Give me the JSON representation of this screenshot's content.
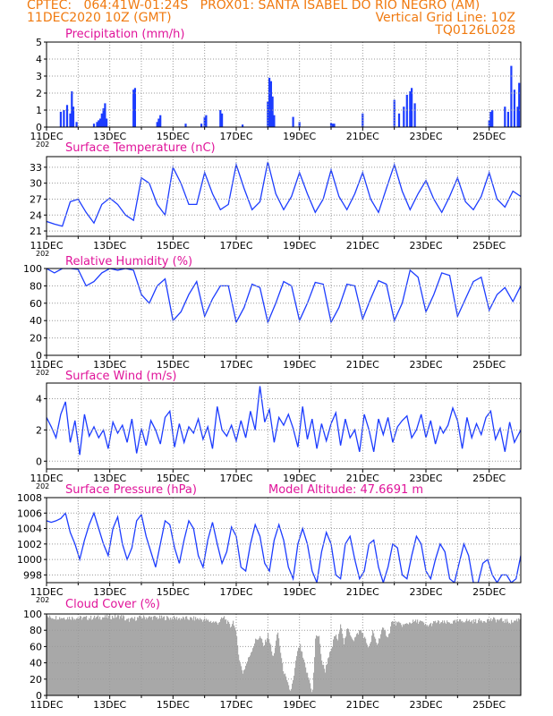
{
  "header": {
    "line1_left": "CPTEC:   064:41W-01:24S   PROX01: SANTA ISABEL DO RIO NEGRO (AM)",
    "line2_left": "11DEC2020 10Z (GMT)",
    "line2_right": "Vertical Grid Line: 10Z",
    "line3_right": "TQ0126L028"
  },
  "colors": {
    "header": "#f07a10",
    "title": "#e0149a",
    "series": "#1c3cff",
    "grid": "#9a9a9a",
    "cloud": "#a8a8a8",
    "axis": "#000000"
  },
  "x_axis": {
    "ticks": [
      "11DEC",
      "13DEC",
      "15DEC",
      "17DEC",
      "19DEC",
      "21DEC",
      "23DEC",
      "25DEC"
    ],
    "tick_days": [
      0,
      2,
      4,
      6,
      8,
      10,
      12,
      14
    ],
    "sub_label": "202",
    "range_days": [
      0,
      15
    ]
  },
  "chart_data": [
    {
      "type": "bar",
      "title": "Precipitation (mm/h)",
      "ylim": [
        0,
        5
      ],
      "yticks": [
        "0",
        "1",
        "2",
        "3",
        "4",
        "5"
      ],
      "x_unit": "days since 11DEC2020 10Z",
      "bars": [
        [
          0.45,
          0.9
        ],
        [
          0.55,
          1.0
        ],
        [
          0.65,
          1.3
        ],
        [
          0.75,
          0.8
        ],
        [
          0.8,
          2.1
        ],
        [
          0.85,
          1.2
        ],
        [
          0.95,
          0.3
        ],
        [
          1.5,
          0.2
        ],
        [
          1.6,
          0.3
        ],
        [
          1.65,
          0.4
        ],
        [
          1.7,
          0.5
        ],
        [
          1.75,
          0.8
        ],
        [
          1.8,
          1.1
        ],
        [
          1.85,
          1.4
        ],
        [
          1.9,
          0.5
        ],
        [
          2.75,
          2.2
        ],
        [
          2.8,
          2.3
        ],
        [
          3.5,
          0.3
        ],
        [
          3.55,
          0.5
        ],
        [
          3.6,
          0.7
        ],
        [
          4.4,
          0.2
        ],
        [
          4.9,
          0.2
        ],
        [
          5.0,
          0.6
        ],
        [
          5.05,
          0.7
        ],
        [
          5.5,
          1.0
        ],
        [
          5.55,
          0.8
        ],
        [
          6.2,
          0.15
        ],
        [
          7.0,
          1.5
        ],
        [
          7.05,
          2.9
        ],
        [
          7.1,
          2.7
        ],
        [
          7.15,
          1.8
        ],
        [
          7.2,
          0.7
        ],
        [
          7.8,
          0.6
        ],
        [
          8.0,
          0.3
        ],
        [
          9.0,
          0.25
        ],
        [
          9.05,
          0.2
        ],
        [
          9.1,
          0.2
        ],
        [
          10.0,
          0.8
        ],
        [
          11.0,
          1.6
        ],
        [
          11.15,
          0.8
        ],
        [
          11.3,
          1.2
        ],
        [
          11.4,
          1.9
        ],
        [
          11.5,
          2.1
        ],
        [
          11.55,
          2.3
        ],
        [
          11.65,
          1.4
        ],
        [
          14.0,
          0.4
        ],
        [
          14.05,
          0.9
        ],
        [
          14.1,
          1.0
        ],
        [
          14.5,
          1.2
        ],
        [
          14.6,
          0.9
        ],
        [
          14.7,
          3.6
        ],
        [
          14.8,
          2.2
        ],
        [
          14.9,
          1.2
        ],
        [
          14.95,
          2.6
        ]
      ]
    },
    {
      "type": "line",
      "title": "Surface Temperature (nC)",
      "ylim": [
        20,
        35
      ],
      "yticks": [
        "21",
        "24",
        "27",
        "30",
        "33"
      ],
      "ytick_values": [
        21,
        24,
        27,
        30,
        33
      ],
      "x": [
        0,
        0.25,
        0.5,
        0.75,
        1,
        1.25,
        1.5,
        1.75,
        2,
        2.25,
        2.5,
        2.75,
        3,
        3.25,
        3.5,
        3.75,
        4,
        4.25,
        4.5,
        4.75,
        5,
        5.25,
        5.5,
        5.75,
        6,
        6.25,
        6.5,
        6.75,
        7,
        7.25,
        7.5,
        7.75,
        8,
        8.25,
        8.5,
        8.75,
        9,
        9.25,
        9.5,
        9.75,
        10,
        10.25,
        10.5,
        10.75,
        11,
        11.25,
        11.5,
        11.75,
        12,
        12.25,
        12.5,
        12.75,
        13,
        13.25,
        13.5,
        13.75,
        14,
        14.25,
        14.5,
        14.75,
        15
      ],
      "y": [
        22.8,
        22.3,
        21.9,
        26.5,
        27.0,
        24.5,
        22.5,
        26.0,
        27.2,
        26.0,
        24.0,
        23.0,
        31.0,
        30.0,
        26.0,
        24.0,
        33.0,
        30.0,
        26.0,
        26.0,
        32.0,
        28.0,
        25.0,
        26.0,
        33.5,
        29.0,
        25.0,
        26.5,
        34.0,
        28.0,
        25.0,
        27.5,
        32.0,
        28.0,
        24.5,
        27.0,
        32.5,
        27.5,
        25.0,
        28.0,
        32.0,
        27.0,
        24.5,
        29.0,
        33.5,
        28.5,
        25.0,
        28.0,
        30.5,
        27.0,
        24.5,
        27.5,
        31.0,
        26.5,
        25.0,
        27.5,
        32.0,
        27.0,
        25.5,
        28.5,
        27.5
      ]
    },
    {
      "type": "line",
      "title": "Relative Humidity (%)",
      "ylim": [
        0,
        100
      ],
      "yticks": [
        "0",
        "20",
        "40",
        "60",
        "80",
        "100"
      ],
      "x": [
        0,
        0.25,
        0.5,
        0.75,
        1,
        1.25,
        1.5,
        1.75,
        2,
        2.25,
        2.5,
        2.75,
        3,
        3.25,
        3.5,
        3.75,
        4,
        4.25,
        4.5,
        4.75,
        5,
        5.25,
        5.5,
        5.75,
        6,
        6.25,
        6.5,
        6.75,
        7,
        7.25,
        7.5,
        7.75,
        8,
        8.25,
        8.5,
        8.75,
        9,
        9.25,
        9.5,
        9.75,
        10,
        10.25,
        10.5,
        10.75,
        11,
        11.25,
        11.5,
        11.75,
        12,
        12.25,
        12.5,
        12.75,
        13,
        13.25,
        13.5,
        13.75,
        14,
        14.25,
        14.5,
        14.75,
        15
      ],
      "y": [
        100,
        95,
        100,
        100,
        99,
        80,
        85,
        95,
        100,
        98,
        100,
        98,
        70,
        60,
        80,
        88,
        40,
        50,
        70,
        85,
        45,
        65,
        80,
        80,
        38,
        55,
        82,
        78,
        38,
        60,
        85,
        80,
        40,
        60,
        84,
        82,
        38,
        55,
        82,
        80,
        42,
        65,
        86,
        82,
        40,
        60,
        98,
        90,
        50,
        70,
        95,
        92,
        45,
        65,
        85,
        90,
        52,
        70,
        78,
        62,
        80
      ]
    },
    {
      "type": "line",
      "title": "Surface Wind (m/s)",
      "ylim": [
        -0.5,
        5
      ],
      "yticks": [
        "0",
        "2",
        "4"
      ],
      "ytick_values": [
        0,
        2,
        4
      ],
      "x": [
        0,
        0.15,
        0.3,
        0.45,
        0.6,
        0.75,
        0.9,
        1.05,
        1.2,
        1.35,
        1.5,
        1.65,
        1.8,
        1.95,
        2.1,
        2.25,
        2.4,
        2.55,
        2.7,
        2.85,
        3,
        3.15,
        3.3,
        3.45,
        3.6,
        3.75,
        3.9,
        4.05,
        4.2,
        4.35,
        4.5,
        4.65,
        4.8,
        4.95,
        5.1,
        5.25,
        5.4,
        5.55,
        5.7,
        5.85,
        6,
        6.15,
        6.3,
        6.45,
        6.6,
        6.75,
        6.9,
        7.05,
        7.2,
        7.35,
        7.5,
        7.65,
        7.8,
        7.95,
        8.1,
        8.25,
        8.4,
        8.55,
        8.7,
        8.85,
        9,
        9.15,
        9.3,
        9.45,
        9.6,
        9.75,
        9.9,
        10.05,
        10.2,
        10.35,
        10.5,
        10.65,
        10.8,
        10.95,
        11.1,
        11.25,
        11.4,
        11.55,
        11.7,
        11.85,
        12,
        12.15,
        12.3,
        12.45,
        12.55,
        12.7,
        12.85,
        13,
        13.15,
        13.3,
        13.45,
        13.6,
        13.75,
        13.9,
        14.05,
        14.2,
        14.35,
        14.5,
        14.65,
        14.8,
        15
      ],
      "y": [
        2.8,
        2.2,
        1.5,
        3.0,
        3.8,
        1.2,
        2.6,
        0.4,
        3.0,
        1.6,
        2.2,
        1.5,
        2.0,
        0.8,
        2.5,
        1.8,
        2.3,
        1.2,
        2.7,
        0.5,
        2.1,
        1.0,
        2.6,
        2.0,
        1.1,
        2.8,
        3.2,
        0.9,
        2.4,
        1.2,
        2.2,
        1.8,
        2.7,
        1.4,
        2.2,
        0.8,
        3.5,
        2.0,
        1.6,
        2.3,
        1.3,
        2.6,
        1.5,
        3.2,
        2.0,
        4.8,
        2.5,
        3.3,
        1.2,
        2.8,
        2.3,
        3.0,
        2.1,
        0.9,
        3.5,
        1.4,
        2.7,
        0.8,
        2.4,
        1.3,
        2.4,
        3.1,
        1.0,
        2.7,
        1.5,
        2.0,
        0.6,
        3.0,
        2.0,
        0.6,
        2.7,
        1.7,
        2.8,
        1.2,
        2.2,
        2.6,
        2.9,
        1.5,
        2.0,
        3.0,
        1.5,
        2.6,
        1.1,
        2.2,
        1.8,
        2.3,
        3.4,
        2.6,
        0.8,
        2.8,
        1.5,
        2.4,
        1.7,
        2.8,
        3.2,
        1.4,
        2.1,
        0.6,
        2.5,
        1.2,
        2.0
      ]
    },
    {
      "type": "line",
      "title": "Surface Pressure (hPa)",
      "ylim": [
        997,
        1008
      ],
      "yticks": [
        "998",
        "1000",
        "1002",
        "1004",
        "1006",
        "1008"
      ],
      "ytick_values": [
        998,
        1000,
        1002,
        1004,
        1006,
        1008
      ],
      "x": [
        0,
        0.15,
        0.3,
        0.45,
        0.6,
        0.75,
        0.9,
        1.05,
        1.2,
        1.35,
        1.5,
        1.65,
        1.8,
        1.95,
        2.1,
        2.25,
        2.4,
        2.55,
        2.7,
        2.85,
        3,
        3.15,
        3.3,
        3.45,
        3.6,
        3.75,
        3.9,
        4.05,
        4.2,
        4.35,
        4.5,
        4.65,
        4.8,
        4.95,
        5.1,
        5.25,
        5.4,
        5.55,
        5.7,
        5.85,
        6,
        6.15,
        6.3,
        6.45,
        6.6,
        6.75,
        6.9,
        7.05,
        7.2,
        7.35,
        7.5,
        7.65,
        7.8,
        7.95,
        8.1,
        8.25,
        8.4,
        8.55,
        8.7,
        8.85,
        9,
        9.15,
        9.3,
        9.45,
        9.6,
        9.75,
        9.9,
        10.05,
        10.2,
        10.35,
        10.5,
        10.65,
        10.8,
        10.95,
        11.1,
        11.25,
        11.4,
        11.55,
        11.7,
        11.85,
        12,
        12.15,
        12.3,
        12.45,
        12.6,
        12.75,
        12.9,
        13.05,
        13.2,
        13.35,
        13.5,
        13.65,
        13.8,
        13.95,
        14.1,
        14.25,
        14.4,
        14.55,
        14.7,
        14.85,
        15
      ],
      "y": [
        1005,
        1004.8,
        1005.0,
        1005.3,
        1006.0,
        1003.5,
        1002.0,
        1000.0,
        1002.5,
        1004.5,
        1006.0,
        1004.0,
        1002.0,
        1000.5,
        1004.0,
        1005.5,
        1002.0,
        1000.0,
        1001.5,
        1005.0,
        1005.8,
        1003.0,
        1001.0,
        999.0,
        1002.0,
        1005.0,
        1004.5,
        1001.5,
        999.5,
        1002.5,
        1005.0,
        1004.0,
        1000.5,
        999.0,
        1002.5,
        1004.8,
        1002.0,
        999.5,
        1001.0,
        1004.2,
        1003.0,
        999.0,
        998.5,
        1002.0,
        1004.5,
        1003.0,
        999.5,
        998.5,
        1002.5,
        1004.5,
        1002.5,
        999.0,
        997.5,
        1002.0,
        1004.0,
        1002.0,
        998.5,
        997.0,
        1001.0,
        1003.5,
        1002.0,
        998.0,
        997.5,
        1002.0,
        1003.0,
        1000.0,
        997.5,
        998.5,
        1002.0,
        1002.5,
        999.0,
        997.0,
        999.0,
        1002.0,
        1001.5,
        998.0,
        997.5,
        1000.5,
        1003.0,
        1002.0,
        998.5,
        997.5,
        1000.0,
        1002.0,
        1001.0,
        997.5,
        997.0,
        999.5,
        1002.0,
        1000.5,
        997.0,
        997.0,
        999.5,
        1000.0,
        998.0,
        997.0,
        998.0,
        998.0,
        997.0,
        997.5,
        1000.5
      ]
    },
    {
      "type": "area",
      "title": "Cloud Cover (%)",
      "ylim": [
        0,
        100
      ],
      "yticks": [
        "0",
        "20",
        "40",
        "60",
        "80",
        "100"
      ],
      "breakpoints": [
        [
          0,
          96
        ],
        [
          1.2,
          95
        ],
        [
          2.4,
          97
        ],
        [
          2.5,
          92
        ],
        [
          3.0,
          96
        ],
        [
          4.8,
          94
        ],
        [
          5.4,
          89
        ],
        [
          5.6,
          96
        ],
        [
          5.8,
          84
        ],
        [
          5.9,
          92
        ],
        [
          6.0,
          70
        ],
        [
          6.1,
          40
        ],
        [
          6.2,
          28
        ],
        [
          6.3,
          38
        ],
        [
          6.4,
          48
        ],
        [
          6.5,
          58
        ],
        [
          6.6,
          68
        ],
        [
          6.75,
          72
        ],
        [
          6.85,
          60
        ],
        [
          7.0,
          75
        ],
        [
          7.15,
          45
        ],
        [
          7.3,
          78
        ],
        [
          7.45,
          35
        ],
        [
          7.6,
          15
        ],
        [
          7.7,
          5
        ],
        [
          7.8,
          20
        ],
        [
          7.9,
          50
        ],
        [
          8.0,
          62
        ],
        [
          8.1,
          45
        ],
        [
          8.2,
          30
        ],
        [
          8.3,
          18
        ],
        [
          8.4,
          2
        ],
        [
          8.5,
          75
        ],
        [
          8.6,
          72
        ],
        [
          8.7,
          40
        ],
        [
          8.8,
          30
        ],
        [
          8.9,
          48
        ],
        [
          9.0,
          55
        ],
        [
          9.1,
          75
        ],
        [
          9.2,
          68
        ],
        [
          9.3,
          88
        ],
        [
          9.4,
          64
        ],
        [
          9.5,
          82
        ],
        [
          9.7,
          68
        ],
        [
          9.9,
          80
        ],
        [
          10.0,
          75
        ],
        [
          10.1,
          65
        ],
        [
          10.2,
          58
        ],
        [
          10.3,
          78
        ],
        [
          10.45,
          62
        ],
        [
          10.6,
          82
        ],
        [
          10.8,
          72
        ],
        [
          10.9,
          90
        ],
        [
          11.1,
          88
        ],
        [
          11.3,
          86
        ],
        [
          11.5,
          90
        ],
        [
          11.8,
          91
        ],
        [
          12.0,
          85
        ],
        [
          12.3,
          90
        ],
        [
          12.6,
          89
        ],
        [
          12.9,
          90
        ],
        [
          13.2,
          92
        ],
        [
          13.5,
          91
        ],
        [
          13.8,
          92
        ],
        [
          14.1,
          93
        ],
        [
          14.4,
          92
        ],
        [
          14.7,
          90
        ],
        [
          15.0,
          95
        ]
      ]
    }
  ],
  "titles": {
    "pressure_extra": "Model Altitude: 47.6691  m"
  }
}
